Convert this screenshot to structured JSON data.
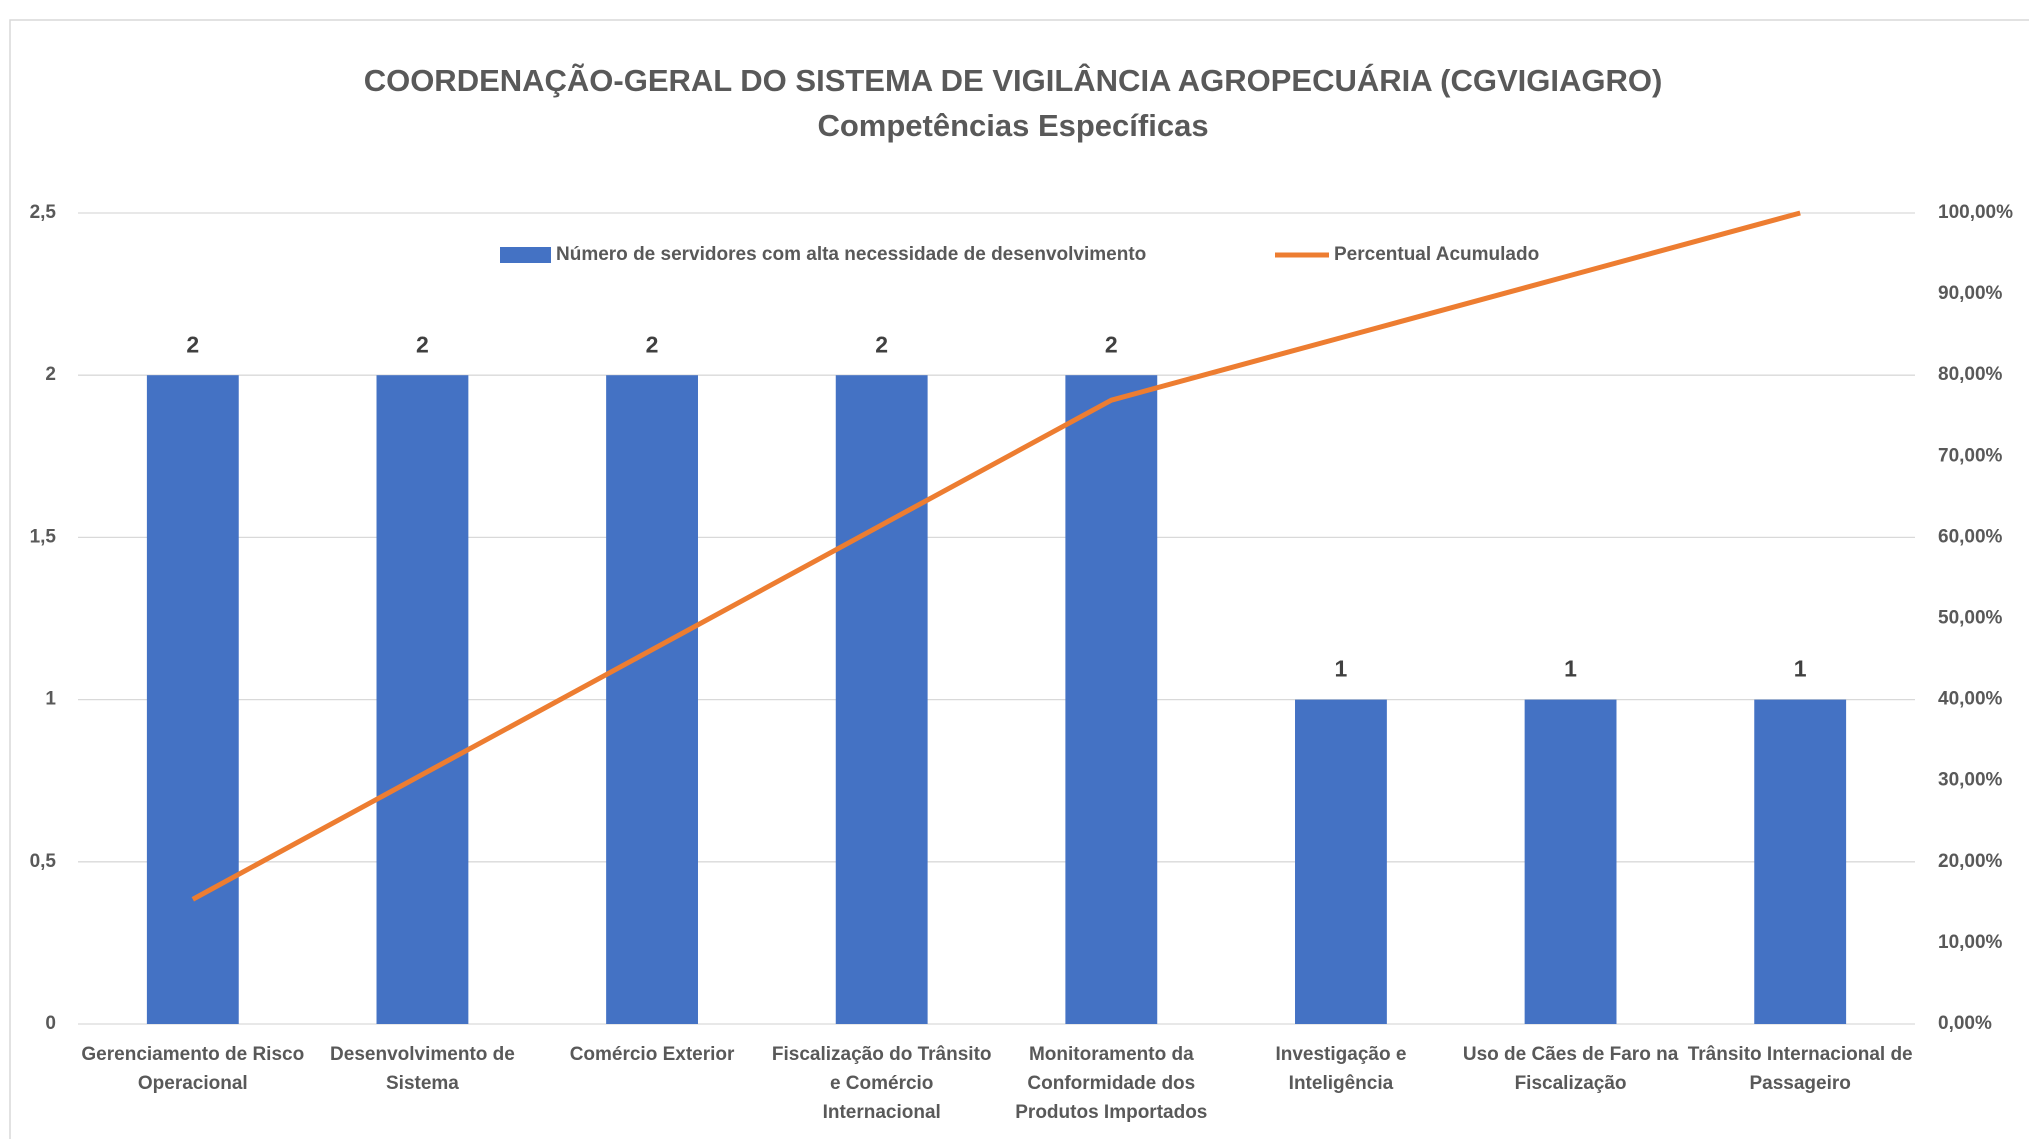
{
  "chart_data": {
    "type": "bar",
    "title": "COORDENAÇÃO-GERAL DO SISTEMA DE VIGILÂNCIA AGROPECUÁRIA (CGVIGIAGRO)",
    "subtitle": "Competências  Específicas",
    "categories": [
      "Gerenciamento de Risco Operacional",
      "Desenvolvimento de Sistema",
      "Comércio Exterior",
      "Fiscalização do Trânsito e Comércio Internacional",
      "Monitoramento da Conformidade dos Produtos Importados",
      "Investigação e Inteligência",
      "Uso de Cães de Faro na Fiscalização",
      "Trânsito Internacional de Passageiro"
    ],
    "series": [
      {
        "name": "Número de servidores com alta necessidade de desenvolvimento",
        "type": "bar",
        "color": "#4472c4",
        "values": [
          2,
          2,
          2,
          2,
          2,
          1,
          1,
          1
        ]
      },
      {
        "name": "Percentual Acumulado",
        "type": "line",
        "axis": "y2",
        "color": "#ed7d31",
        "values": [
          15.38,
          30.77,
          46.15,
          61.54,
          76.92,
          84.62,
          92.31,
          100
        ]
      }
    ],
    "ylim": [
      0,
      2.5
    ],
    "yticks": [
      0,
      {
        "value": 0.5,
        "label": "0,5"
      },
      1,
      {
        "value": 1.5,
        "label": "1,5"
      },
      2,
      {
        "value": 2.5,
        "label": "2,5"
      }
    ],
    "y2lim": [
      0,
      100
    ],
    "y2ticks": [
      {
        "value": 0,
        "label": "0,00%"
      },
      {
        "value": 10,
        "label": "10,00%"
      },
      {
        "value": 20,
        "label": "20,00%"
      },
      {
        "value": 30,
        "label": "30,00%"
      },
      {
        "value": 40,
        "label": "40,00%"
      },
      {
        "value": 50,
        "label": "50,00%"
      },
      {
        "value": 60,
        "label": "60,00%"
      },
      {
        "value": 70,
        "label": "70,00%"
      },
      {
        "value": 80,
        "label": "80,00%"
      },
      {
        "value": 90,
        "label": "90,00%"
      },
      {
        "value": 100,
        "label": "100,00%"
      }
    ],
    "grid": true,
    "legend": "top"
  }
}
